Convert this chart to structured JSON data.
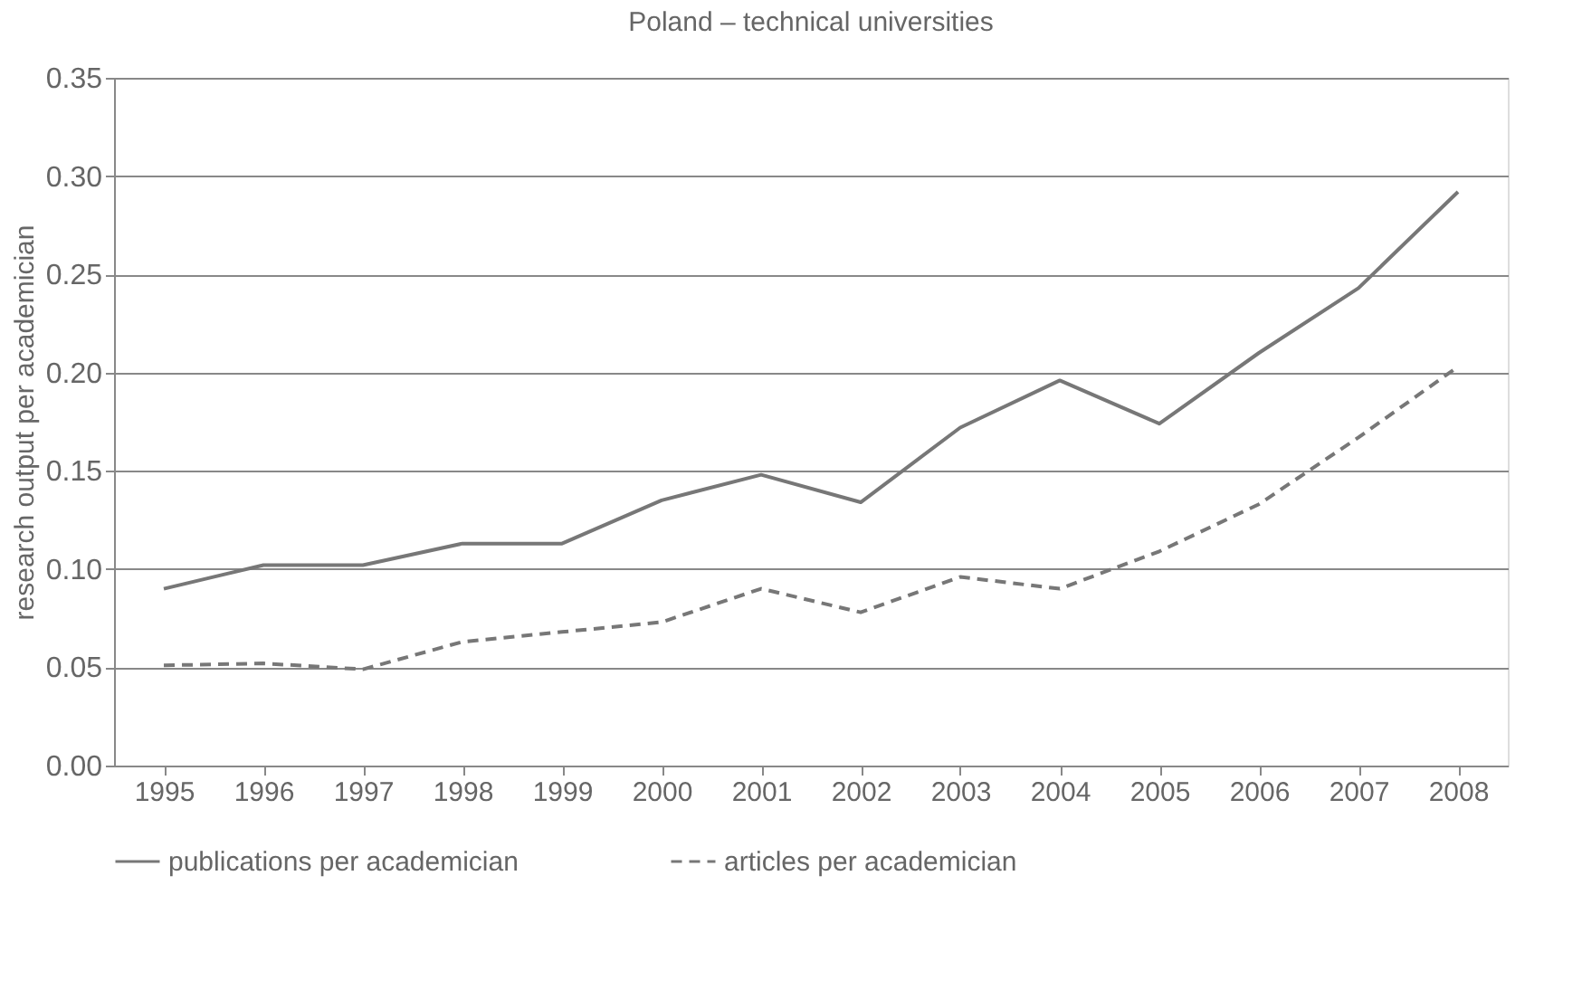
{
  "chart_data": {
    "type": "line",
    "title": "Poland – technical universities",
    "ylabel": "research output per academician",
    "categories": [
      "1995",
      "1996",
      "1997",
      "1998",
      "1999",
      "2000",
      "2001",
      "2002",
      "2003",
      "2004",
      "2005",
      "2006",
      "2007",
      "2008"
    ],
    "series": [
      {
        "name": "publications per academician",
        "color": "#777777",
        "line_style": "solid",
        "values": [
          0.09,
          0.102,
          0.102,
          0.113,
          0.113,
          0.135,
          0.148,
          0.134,
          0.172,
          0.196,
          0.174,
          0.21,
          0.243,
          0.292
        ]
      },
      {
        "name": "articles per academician",
        "color": "#777777",
        "line_style": "dashed",
        "values": [
          0.051,
          0.052,
          0.049,
          0.063,
          0.068,
          0.073,
          0.09,
          0.078,
          0.096,
          0.09,
          0.109,
          0.133,
          0.167,
          0.203
        ]
      }
    ],
    "ylim": [
      0,
      0.35
    ],
    "yticks": [
      {
        "value": 0,
        "label": "0.00"
      },
      {
        "value": 0.05,
        "label": "0.05"
      },
      {
        "value": 0.1,
        "label": "0.10"
      },
      {
        "value": 0.15,
        "label": "0.15"
      },
      {
        "value": 0.2,
        "label": "0.20"
      },
      {
        "value": 0.25,
        "label": "0.25"
      },
      {
        "value": 0.3,
        "label": "0.30"
      },
      {
        "value": 0.35,
        "label": "0.35"
      }
    ],
    "grid": "y",
    "legend": "bottom",
    "marker": "none"
  }
}
